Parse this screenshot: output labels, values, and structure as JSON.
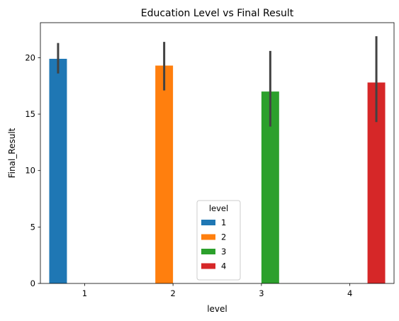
{
  "chart_data": {
    "type": "bar",
    "title": "Education Level  vs Final Result",
    "xlabel": "level",
    "ylabel": "Final_Result",
    "categories": [
      "1",
      "2",
      "3",
      "4"
    ],
    "ylim": [
      0,
      23.1
    ],
    "yticks": [
      0,
      5,
      10,
      15,
      20
    ],
    "grid": false,
    "legend": {
      "title": "level",
      "placement": "lower-center",
      "entries": [
        "1",
        "2",
        "3",
        "4"
      ]
    },
    "series": [
      {
        "name": "1",
        "color": "#1f77b4",
        "values": [
          19.9,
          null,
          null,
          null
        ],
        "ci_low": [
          18.6,
          null,
          null,
          null
        ],
        "ci_high": [
          21.3,
          null,
          null,
          null
        ]
      },
      {
        "name": "2",
        "color": "#ff7f0e",
        "values": [
          null,
          19.3,
          null,
          null
        ],
        "ci_low": [
          null,
          17.1,
          null,
          null
        ],
        "ci_high": [
          null,
          21.4,
          null,
          null
        ]
      },
      {
        "name": "3",
        "color": "#2ca02c",
        "values": [
          null,
          null,
          17.0,
          null
        ],
        "ci_low": [
          null,
          null,
          13.9,
          null
        ],
        "ci_high": [
          null,
          null,
          20.6,
          null
        ]
      },
      {
        "name": "4",
        "color": "#d62728",
        "values": [
          null,
          null,
          null,
          17.8
        ],
        "ci_low": [
          null,
          null,
          null,
          14.3
        ],
        "ci_high": [
          null,
          null,
          null,
          21.9
        ]
      }
    ]
  }
}
